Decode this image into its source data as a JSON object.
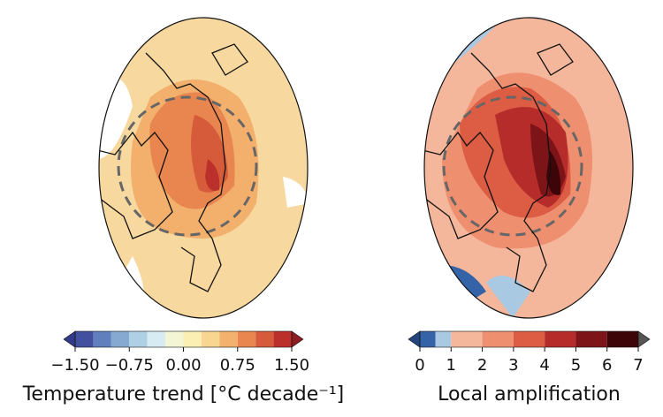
{
  "panels": [
    {
      "colorbar": {
        "label": "Temperature trend [°C decade⁻¹]",
        "lim": [
          -1.5,
          1.5
        ],
        "ticks": [
          {
            "value": -1.5,
            "label": "−1.50"
          },
          {
            "value": -0.75,
            "label": "−0.75"
          },
          {
            "value": 0,
            "label": "0.00"
          },
          {
            "value": 0.75,
            "label": "0.75"
          },
          {
            "value": 1.5,
            "label": "1.50"
          }
        ],
        "bins": [
          -1.5,
          -1.25,
          -1,
          -0.75,
          -0.5,
          -0.25,
          0,
          0.25,
          0.5,
          0.75,
          1,
          1.25,
          1.5
        ],
        "colors": [
          "#42509f",
          "#5f7fbd",
          "#86a9d1",
          "#afd0e4",
          "#d7ecf2",
          "#f3f5d4",
          "#fbefb4",
          "#f8d690",
          "#f2b16c",
          "#e9864f",
          "#d65b3b",
          "#bb302b"
        ],
        "extend_colors": [
          "#333a8a",
          "#8e1d22"
        ]
      }
    },
    {
      "colorbar": {
        "label": "Local amplification",
        "lim": [
          0,
          7
        ],
        "ticks": [
          0,
          1,
          2,
          3,
          4,
          5,
          6,
          7
        ],
        "bins": [
          0,
          0.5,
          1,
          2,
          3,
          4,
          5,
          6,
          7
        ],
        "colors": [
          "#3563a8",
          "#a9c9e2",
          "#f4b79c",
          "#ee8f70",
          "#dc5c44",
          "#b52c2a",
          "#7d1418",
          "#3e0509"
        ],
        "extend_colors": [
          "#24457e",
          "#555555"
        ]
      }
    }
  ]
}
